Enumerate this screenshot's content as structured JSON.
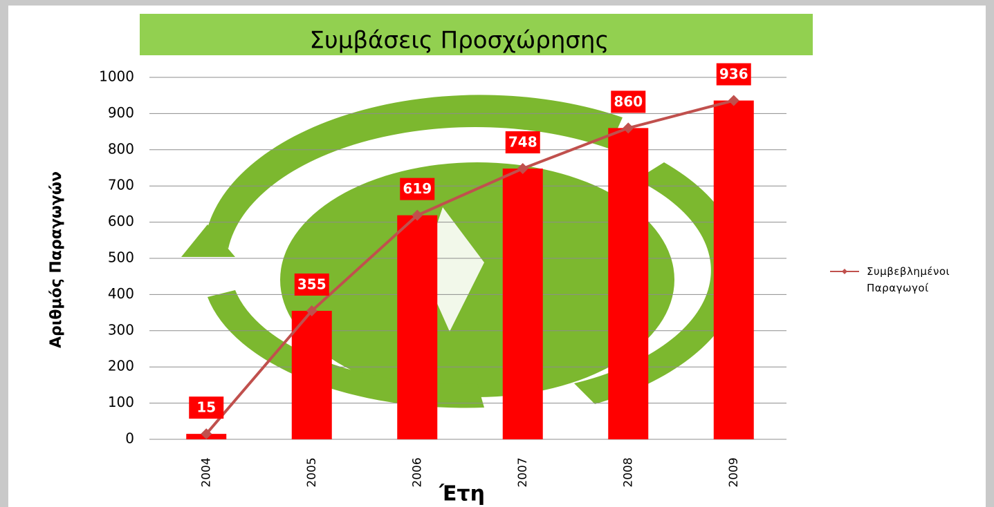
{
  "chart_data": {
    "type": "bar",
    "title": "Συμβάσεις Προσχώρησης",
    "x_label": "Έτη",
    "y_label": "Αριθμός Παραγωγών",
    "categories": [
      "2004",
      "2005",
      "2006",
      "2007",
      "2008",
      "2009"
    ],
    "series": [
      {
        "type": "bar",
        "color": "#ff0000",
        "values": [
          15,
          355,
          619,
          748,
          860,
          936
        ]
      },
      {
        "type": "line",
        "name": "Συμβεβλημένοι Παραγωγοί",
        "color": "#c0504d",
        "values": [
          15,
          355,
          619,
          748,
          860,
          936
        ]
      }
    ],
    "ylim": [
      0,
      1000
    ],
    "yticks": [
      0,
      100,
      200,
      300,
      400,
      500,
      600,
      700,
      800,
      900,
      1000
    ],
    "grid": true,
    "legend": "right"
  }
}
